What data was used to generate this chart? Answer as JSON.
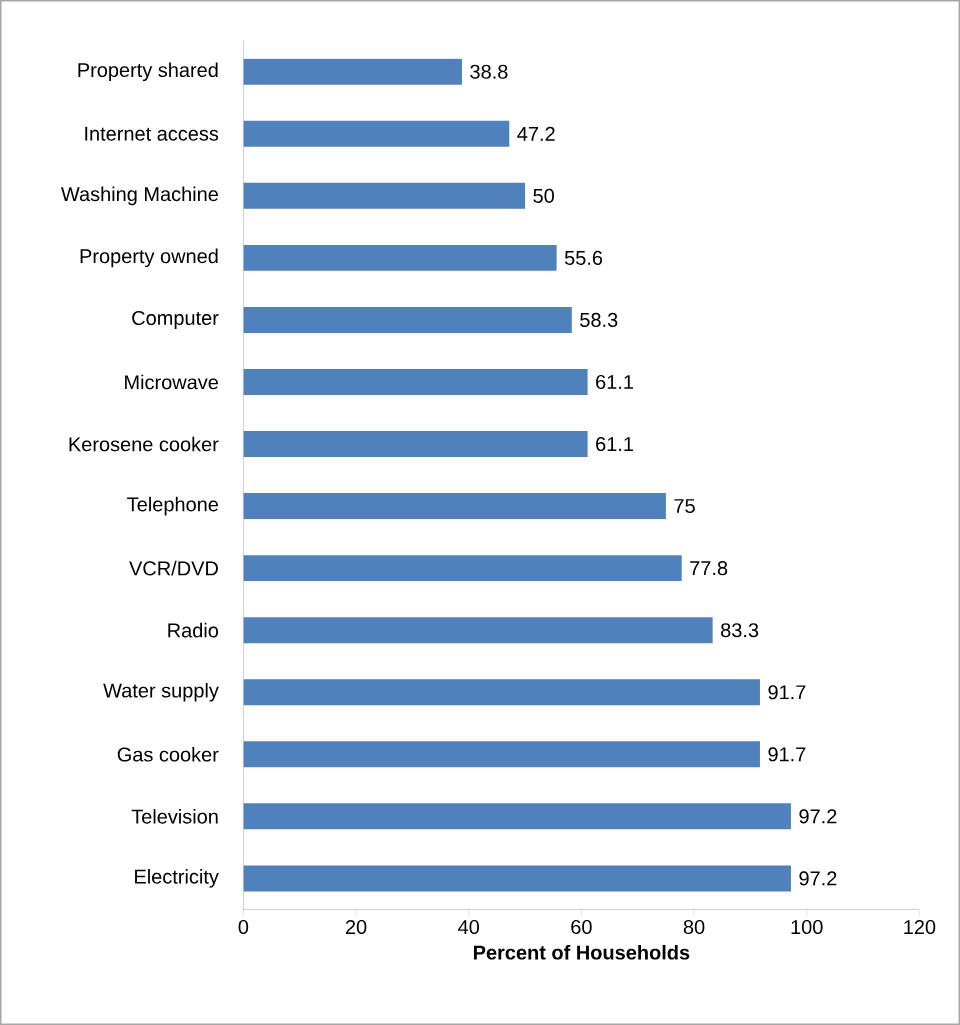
{
  "chart_data": {
    "type": "bar",
    "orientation": "horizontal",
    "xlabel": "Percent of Households",
    "categories": [
      "Property shared",
      "Internet access",
      "Washing Machine",
      "Property owned",
      "Computer",
      "Microwave",
      "Kerosene cooker",
      "Telephone",
      "VCR/DVD",
      "Radio",
      "Water supply",
      "Gas cooker",
      "Television",
      "Electricity"
    ],
    "values": [
      38.8,
      47.2,
      50,
      55.6,
      58.3,
      61.1,
      61.1,
      75,
      77.8,
      83.3,
      91.7,
      91.7,
      97.2,
      97.2
    ],
    "color": "#4f81bd",
    "xlim": [
      0,
      120
    ],
    "xticks": [
      0,
      20,
      40,
      60,
      80,
      100,
      120
    ],
    "data_labels": true
  }
}
